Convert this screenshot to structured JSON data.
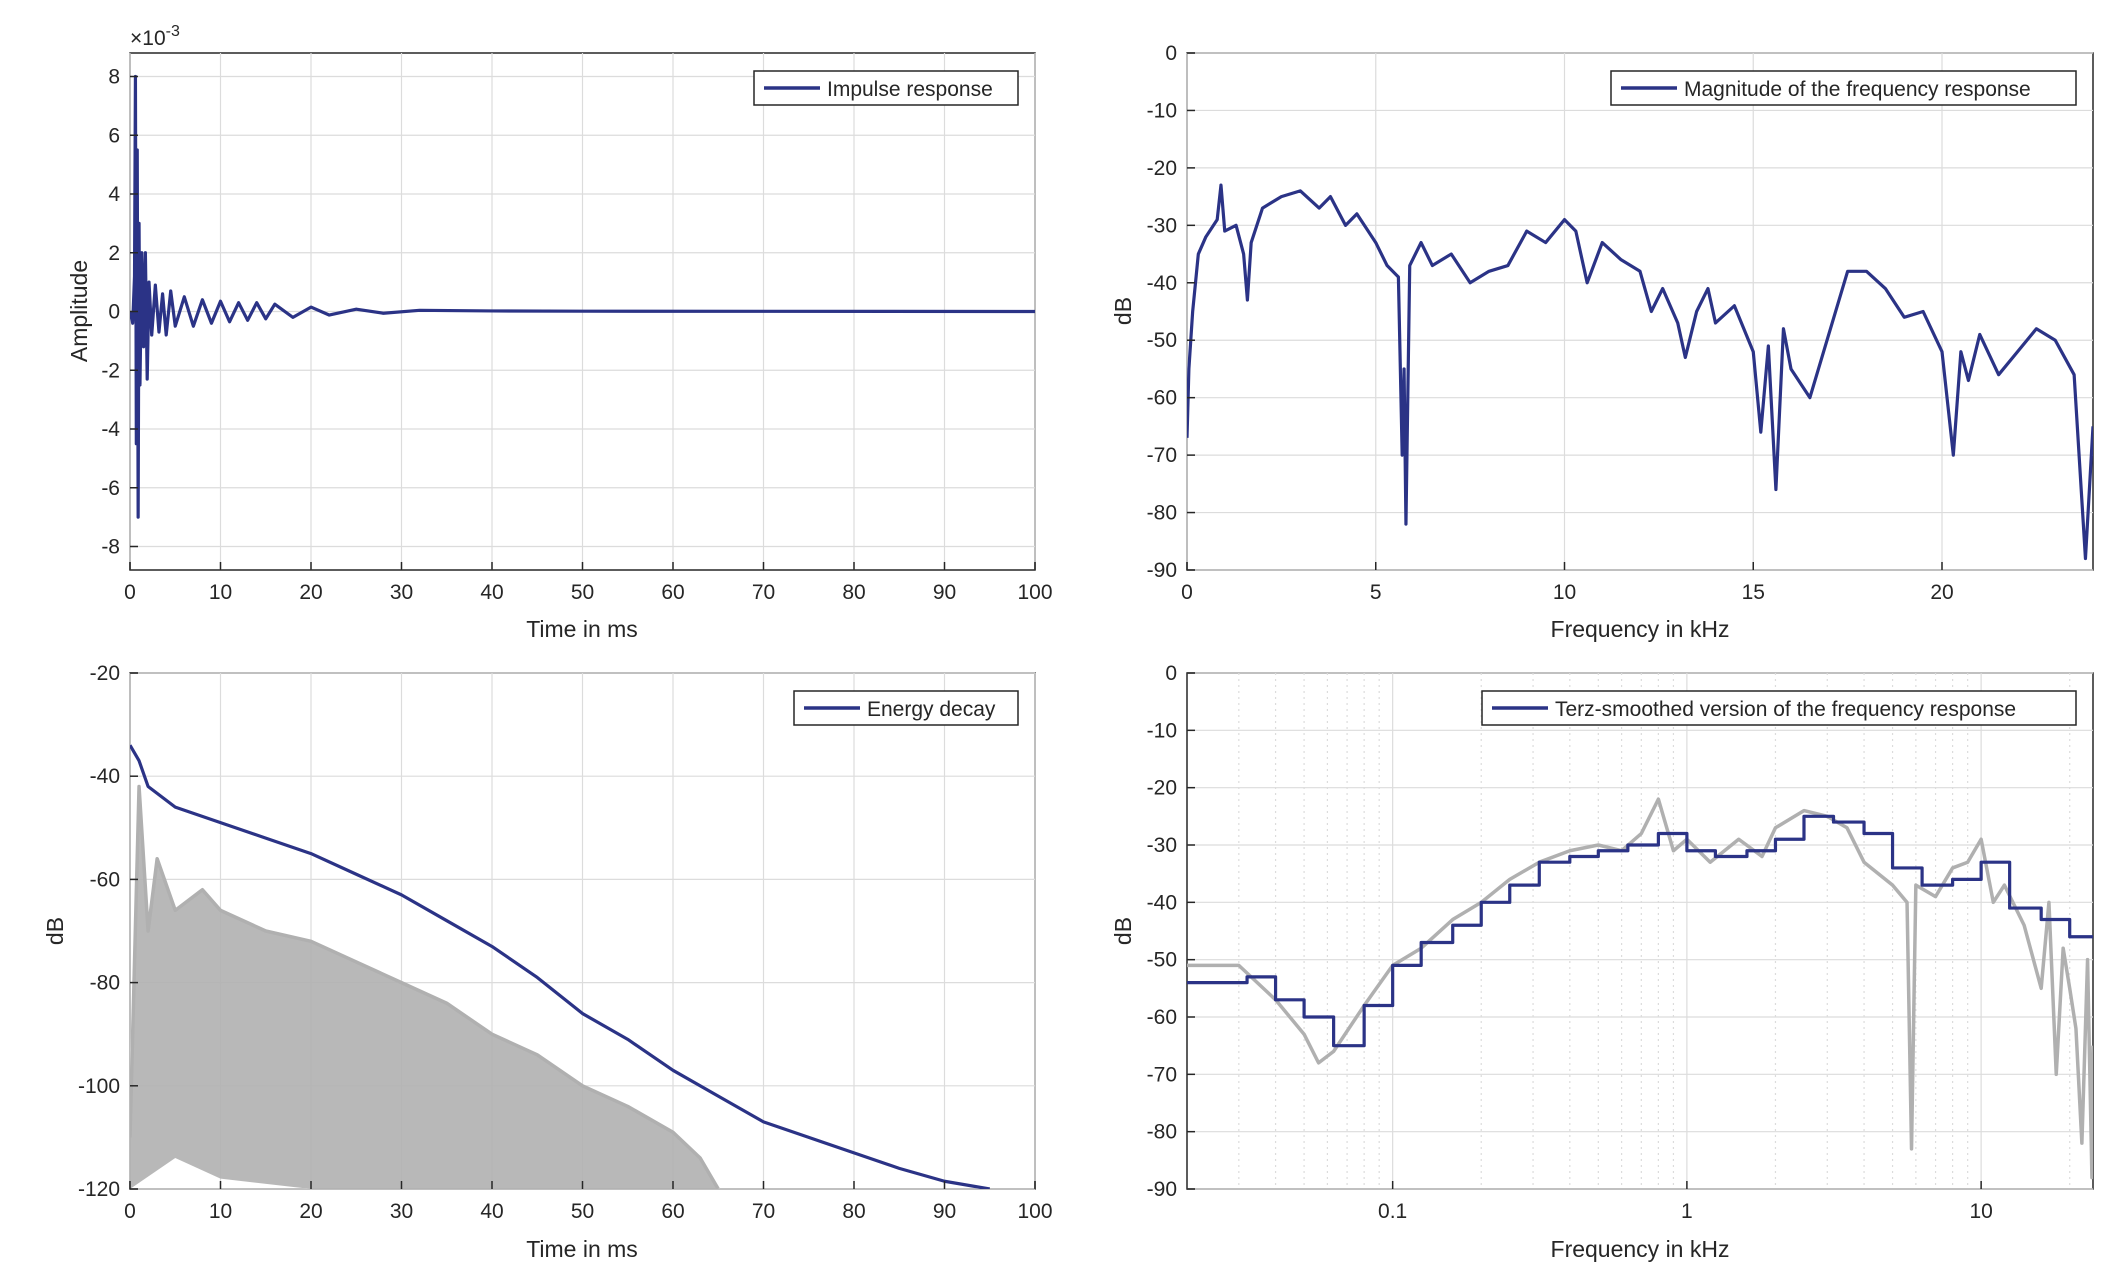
{
  "chart_data": [
    {
      "id": "impulse",
      "type": "line",
      "xlabel": "Time in ms",
      "ylabel": "Amplitude",
      "exponent_label": "×10",
      "exponent_power": "-3",
      "xlim": [
        0,
        100
      ],
      "ylim": [
        -8.8,
        8.8
      ],
      "xticks": [
        0,
        10,
        20,
        30,
        40,
        50,
        60,
        70,
        80,
        90,
        100
      ],
      "yticks": [
        -8,
        -6,
        -4,
        -2,
        0,
        2,
        4,
        6,
        8
      ],
      "legend": [
        "Impulse response"
      ],
      "legend_position": "top-right",
      "grid": true,
      "series": [
        {
          "name": "Impulse response",
          "color": "#2b3386",
          "points": [
            [
              0,
              0
            ],
            [
              0.3,
              -0.4
            ],
            [
              0.5,
              1.2
            ],
            [
              0.6,
              8.0
            ],
            [
              0.7,
              -4.5
            ],
            [
              0.8,
              5.5
            ],
            [
              0.9,
              -7.0
            ],
            [
              1.0,
              3.0
            ],
            [
              1.1,
              -2.5
            ],
            [
              1.3,
              2.0
            ],
            [
              1.5,
              -1.2
            ],
            [
              1.7,
              2.0
            ],
            [
              1.9,
              -2.3
            ],
            [
              2.1,
              1.0
            ],
            [
              2.4,
              -0.8
            ],
            [
              2.8,
              0.9
            ],
            [
              3.2,
              -0.7
            ],
            [
              3.6,
              0.6
            ],
            [
              4.0,
              -0.8
            ],
            [
              4.5,
              0.7
            ],
            [
              5.0,
              -0.5
            ],
            [
              6.0,
              0.5
            ],
            [
              7.0,
              -0.5
            ],
            [
              8.0,
              0.4
            ],
            [
              9.0,
              -0.4
            ],
            [
              10.0,
              0.35
            ],
            [
              11.0,
              -0.35
            ],
            [
              12.0,
              0.3
            ],
            [
              13.0,
              -0.3
            ],
            [
              14.0,
              0.3
            ],
            [
              15.0,
              -0.25
            ],
            [
              16.0,
              0.25
            ],
            [
              18.0,
              -0.2
            ],
            [
              20.0,
              0.15
            ],
            [
              22.0,
              -0.12
            ],
            [
              25.0,
              0.08
            ],
            [
              28.0,
              -0.06
            ],
            [
              32.0,
              0.04
            ],
            [
              40.0,
              0.02
            ],
            [
              50.0,
              0.01
            ],
            [
              100,
              0
            ]
          ]
        }
      ]
    },
    {
      "id": "magnitude",
      "type": "line",
      "xlabel": "Frequency in kHz",
      "ylabel": "dB",
      "xlim": [
        0,
        24
      ],
      "ylim": [
        -90,
        0
      ],
      "xticks": [
        0,
        5,
        10,
        15,
        20
      ],
      "yticks": [
        0,
        -10,
        -20,
        -30,
        -40,
        -50,
        -60,
        -70,
        -80,
        -90
      ],
      "legend": [
        "Magnitude of the frequency response"
      ],
      "legend_position": "top-right",
      "grid": true,
      "series": [
        {
          "name": "Magnitude of the frequency response",
          "color": "#2b3386",
          "points": [
            [
              0.0,
              -67
            ],
            [
              0.05,
              -55
            ],
            [
              0.15,
              -45
            ],
            [
              0.3,
              -35
            ],
            [
              0.5,
              -32
            ],
            [
              0.8,
              -29
            ],
            [
              0.9,
              -23
            ],
            [
              1.0,
              -31
            ],
            [
              1.3,
              -30
            ],
            [
              1.5,
              -35
            ],
            [
              1.6,
              -43
            ],
            [
              1.7,
              -33
            ],
            [
              2.0,
              -27
            ],
            [
              2.5,
              -25
            ],
            [
              3.0,
              -24
            ],
            [
              3.5,
              -27
            ],
            [
              3.8,
              -25
            ],
            [
              4.2,
              -30
            ],
            [
              4.5,
              -28
            ],
            [
              5.0,
              -33
            ],
            [
              5.3,
              -37
            ],
            [
              5.6,
              -39
            ],
            [
              5.7,
              -70
            ],
            [
              5.75,
              -55
            ],
            [
              5.8,
              -82
            ],
            [
              5.9,
              -37
            ],
            [
              6.2,
              -33
            ],
            [
              6.5,
              -37
            ],
            [
              7.0,
              -35
            ],
            [
              7.5,
              -40
            ],
            [
              8.0,
              -38
            ],
            [
              8.5,
              -37
            ],
            [
              9.0,
              -31
            ],
            [
              9.5,
              -33
            ],
            [
              10.0,
              -29
            ],
            [
              10.3,
              -31
            ],
            [
              10.6,
              -40
            ],
            [
              11.0,
              -33
            ],
            [
              11.5,
              -36
            ],
            [
              12.0,
              -38
            ],
            [
              12.3,
              -45
            ],
            [
              12.6,
              -41
            ],
            [
              13.0,
              -47
            ],
            [
              13.2,
              -53
            ],
            [
              13.5,
              -45
            ],
            [
              13.8,
              -41
            ],
            [
              14.0,
              -47
            ],
            [
              14.5,
              -44
            ],
            [
              15.0,
              -52
            ],
            [
              15.2,
              -66
            ],
            [
              15.4,
              -51
            ],
            [
              15.6,
              -76
            ],
            [
              15.8,
              -48
            ],
            [
              16.0,
              -55
            ],
            [
              16.5,
              -60
            ],
            [
              17.0,
              -49
            ],
            [
              17.5,
              -38
            ],
            [
              18.0,
              -38
            ],
            [
              18.5,
              -41
            ],
            [
              19.0,
              -46
            ],
            [
              19.5,
              -45
            ],
            [
              20.0,
              -52
            ],
            [
              20.3,
              -70
            ],
            [
              20.5,
              -52
            ],
            [
              20.7,
              -57
            ],
            [
              21.0,
              -49
            ],
            [
              21.5,
              -56
            ],
            [
              22.0,
              -52
            ],
            [
              22.5,
              -48
            ],
            [
              23.0,
              -50
            ],
            [
              23.5,
              -56
            ],
            [
              23.8,
              -88
            ],
            [
              24.0,
              -65
            ]
          ]
        }
      ]
    },
    {
      "id": "decay",
      "type": "line",
      "xlabel": "Time in ms",
      "ylabel": "dB",
      "xlim": [
        0,
        100
      ],
      "ylim": [
        -120,
        -20
      ],
      "xticks": [
        0,
        10,
        20,
        30,
        40,
        50,
        60,
        70,
        80,
        90,
        100
      ],
      "yticks": [
        -20,
        -40,
        -60,
        -80,
        -100,
        -120
      ],
      "legend": [
        "Energy decay"
      ],
      "legend_position": "top-right",
      "grid": true,
      "series": [
        {
          "name": "Energy decay",
          "color": "#2b3386",
          "points": [
            [
              0,
              -34
            ],
            [
              1,
              -37
            ],
            [
              2,
              -42
            ],
            [
              5,
              -46
            ],
            [
              10,
              -49
            ],
            [
              15,
              -52
            ],
            [
              20,
              -55
            ],
            [
              25,
              -59
            ],
            [
              30,
              -63
            ],
            [
              35,
              -68
            ],
            [
              40,
              -73
            ],
            [
              45,
              -79
            ],
            [
              50,
              -86
            ],
            [
              55,
              -91
            ],
            [
              60,
              -97
            ],
            [
              65,
              -102
            ],
            [
              70,
              -107
            ],
            [
              75,
              -110
            ],
            [
              80,
              -113
            ],
            [
              85,
              -116
            ],
            [
              90,
              -118.5
            ],
            [
              95,
              -120
            ]
          ]
        },
        {
          "color": "#b0b0b0",
          "points": [
            [
              0,
              -110
            ],
            [
              1,
              -42
            ],
            [
              2,
              -70
            ],
            [
              3,
              -56
            ],
            [
              5,
              -66
            ],
            [
              8,
              -62
            ],
            [
              10,
              -66
            ],
            [
              15,
              -70
            ],
            [
              20,
              -72
            ],
            [
              25,
              -76
            ],
            [
              30,
              -80
            ],
            [
              35,
              -84
            ],
            [
              40,
              -90
            ],
            [
              45,
              -94
            ],
            [
              50,
              -100
            ],
            [
              55,
              -104
            ],
            [
              60,
              -109
            ],
            [
              63,
              -114
            ],
            [
              65,
              -120
            ]
          ],
          "lower_envelope": [
            [
              0,
              -120
            ],
            [
              5,
              -114
            ],
            [
              10,
              -118
            ],
            [
              20,
              -120
            ],
            [
              65,
              -120
            ]
          ]
        }
      ]
    },
    {
      "id": "terz",
      "type": "line",
      "xlabel": "Frequency in kHz",
      "ylabel": "dB",
      "xscale": "log",
      "xlim": [
        0.02,
        24
      ],
      "ylim": [
        -90,
        0
      ],
      "xticks": [
        0.1,
        1,
        10
      ],
      "xtick_labels": [
        "0.1",
        "1",
        "10"
      ],
      "yticks": [
        0,
        -10,
        -20,
        -30,
        -40,
        -50,
        -60,
        -70,
        -80,
        -90
      ],
      "legend": [
        "Terz-smoothed version of the frequency response"
      ],
      "legend_position": "top-right",
      "grid": true,
      "series": [
        {
          "name": "Terz-smoothed version of the frequency response",
          "color": "#2b3386",
          "step": true,
          "points": [
            [
              0.02,
              -54
            ],
            [
              0.025,
              -54
            ],
            [
              0.032,
              -53
            ],
            [
              0.04,
              -57
            ],
            [
              0.05,
              -60
            ],
            [
              0.063,
              -65
            ],
            [
              0.08,
              -58
            ],
            [
              0.1,
              -51
            ],
            [
              0.125,
              -47
            ],
            [
              0.16,
              -44
            ],
            [
              0.2,
              -40
            ],
            [
              0.25,
              -37
            ],
            [
              0.315,
              -33
            ],
            [
              0.4,
              -32
            ],
            [
              0.5,
              -31
            ],
            [
              0.63,
              -30
            ],
            [
              0.8,
              -28
            ],
            [
              1.0,
              -31
            ],
            [
              1.25,
              -32
            ],
            [
              1.6,
              -31
            ],
            [
              2.0,
              -29
            ],
            [
              2.5,
              -25
            ],
            [
              3.15,
              -26
            ],
            [
              4.0,
              -28
            ],
            [
              5.0,
              -34
            ],
            [
              6.3,
              -37
            ],
            [
              8.0,
              -36
            ],
            [
              10.0,
              -33
            ],
            [
              12.5,
              -41
            ],
            [
              16.0,
              -43
            ],
            [
              20.0,
              -46
            ],
            [
              24.0,
              -46
            ]
          ]
        },
        {
          "color": "#b0b0b0",
          "points": [
            [
              0.02,
              -51
            ],
            [
              0.03,
              -51
            ],
            [
              0.04,
              -57
            ],
            [
              0.05,
              -63
            ],
            [
              0.056,
              -68
            ],
            [
              0.063,
              -66
            ],
            [
              0.08,
              -58
            ],
            [
              0.1,
              -51
            ],
            [
              0.125,
              -48
            ],
            [
              0.16,
              -43
            ],
            [
              0.2,
              -40
            ],
            [
              0.25,
              -36
            ],
            [
              0.315,
              -33
            ],
            [
              0.4,
              -31
            ],
            [
              0.5,
              -30
            ],
            [
              0.6,
              -31
            ],
            [
              0.7,
              -28
            ],
            [
              0.8,
              -22
            ],
            [
              0.9,
              -31
            ],
            [
              1.0,
              -29
            ],
            [
              1.2,
              -33
            ],
            [
              1.5,
              -29
            ],
            [
              1.8,
              -32
            ],
            [
              2.0,
              -27
            ],
            [
              2.5,
              -24
            ],
            [
              3.0,
              -25
            ],
            [
              3.5,
              -27
            ],
            [
              4.0,
              -33
            ],
            [
              5.0,
              -37
            ],
            [
              5.6,
              -40
            ],
            [
              5.8,
              -83
            ],
            [
              6.0,
              -37
            ],
            [
              7.0,
              -39
            ],
            [
              8.0,
              -34
            ],
            [
              9.0,
              -33
            ],
            [
              10.0,
              -29
            ],
            [
              11.0,
              -40
            ],
            [
              12.0,
              -37
            ],
            [
              14.0,
              -44
            ],
            [
              16.0,
              -55
            ],
            [
              17.0,
              -40
            ],
            [
              18.0,
              -70
            ],
            [
              19.0,
              -48
            ],
            [
              20.0,
              -55
            ],
            [
              21.0,
              -62
            ],
            [
              22.0,
              -82
            ],
            [
              23.0,
              -50
            ],
            [
              23.8,
              -88
            ],
            [
              24.0,
              -65
            ]
          ]
        }
      ]
    }
  ]
}
